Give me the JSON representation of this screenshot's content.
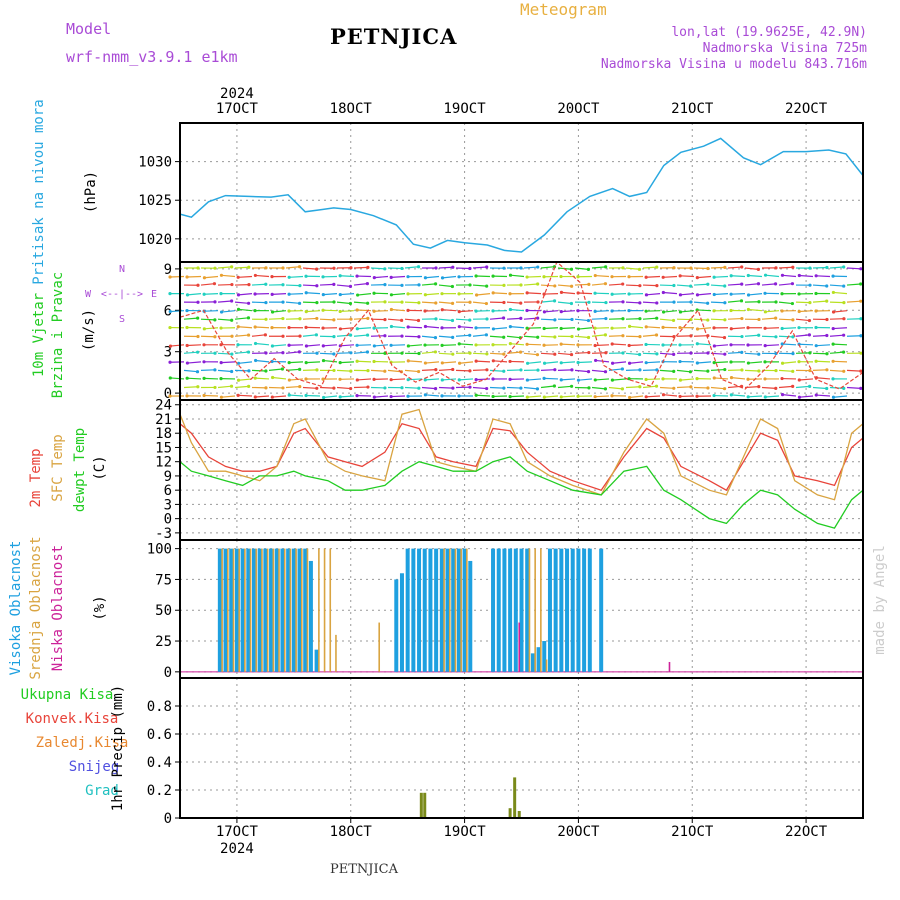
{
  "header": {
    "model_label": "Model",
    "model_name": "wrf-nmm_v3.9.1 e1km",
    "title": "PETNJICA",
    "meteogram": "Meteogram",
    "lonlat": "lon,lat (19.9625E, 42.9N)",
    "altitude": "Nadmorska Visina 725m",
    "model_altitude": "Nadmorska Visina u modelu 843.716m",
    "footer": "PETNJICA",
    "watermark": "made by Angel"
  },
  "colors": {
    "pressure": "#29a8e0",
    "temp2m": "#e8443a",
    "sfc": "#d9a441",
    "dewpt": "#22cc22",
    "vis_cloud": "#1ea0e0",
    "mid_cloud": "#d9a441",
    "low_cloud": "#cc2299",
    "precip": "#7a8a1a",
    "header_purple": "#a94bd6",
    "header_gold": "#e8b040"
  },
  "chart_data": [
    {
      "type": "line",
      "panel": "pressure",
      "ylabel": [
        "Pritisak na nivou mora",
        "(hPa)"
      ],
      "year_label": "2024",
      "x_ticks": [
        "17OCT",
        "18OCT",
        "19OCT",
        "20OCT",
        "21OCT",
        "22OCT"
      ],
      "yticks": [
        1020,
        1025,
        1030
      ],
      "ylim": [
        1017,
        1035
      ],
      "x": [
        16.5,
        16.6,
        16.75,
        16.9,
        17.1,
        17.3,
        17.45,
        17.6,
        17.75,
        17.85,
        18.0,
        18.2,
        18.4,
        18.55,
        18.7,
        18.85,
        19.0,
        19.2,
        19.35,
        19.5,
        19.7,
        19.9,
        20.1,
        20.3,
        20.45,
        20.6,
        20.75,
        20.9,
        21.1,
        21.25,
        21.45,
        21.6,
        21.8,
        22.0,
        22.2,
        22.35,
        22.5
      ],
      "values": [
        1023.2,
        1022.8,
        1024.8,
        1025.6,
        1025.5,
        1025.4,
        1025.7,
        1023.5,
        1023.8,
        1024.0,
        1023.8,
        1023.0,
        1021.8,
        1019.3,
        1018.8,
        1019.8,
        1019.5,
        1019.2,
        1018.5,
        1018.3,
        1020.5,
        1023.5,
        1025.5,
        1026.5,
        1025.5,
        1026.0,
        1029.5,
        1031.2,
        1032.0,
        1033.0,
        1030.5,
        1029.6,
        1031.3,
        1031.3,
        1031.5,
        1031.0,
        1028.2
      ]
    },
    {
      "type": "barbs",
      "panel": "wind",
      "ylabel": [
        "10m Vjetar",
        "Brzina i Pravac",
        "(m/s)"
      ],
      "compass": {
        "n": "N",
        "w": "W",
        "e": "E",
        "s": "S",
        "arrows": "<--|-->"
      },
      "yticks": [
        0,
        3,
        6,
        9
      ],
      "ylim": [
        -0.5,
        9.5
      ]
    },
    {
      "type": "line",
      "panel": "temperature",
      "ylabel": [
        "2m Temp",
        "SFC Temp",
        "dewpt Temp",
        "(C)"
      ],
      "yticks": [
        -3,
        0,
        3,
        6,
        9,
        12,
        15,
        18,
        21,
        24
      ],
      "ylim": [
        -4.5,
        25
      ],
      "x": [
        16.5,
        16.6,
        16.75,
        16.9,
        17.05,
        17.2,
        17.35,
        17.5,
        17.6,
        17.8,
        17.95,
        18.1,
        18.3,
        18.45,
        18.6,
        18.75,
        18.9,
        19.1,
        19.25,
        19.4,
        19.55,
        19.75,
        19.95,
        20.2,
        20.4,
        20.6,
        20.75,
        20.9,
        21.15,
        21.3,
        21.45,
        21.6,
        21.75,
        21.9,
        22.1,
        22.25,
        22.4,
        22.5
      ],
      "series": [
        {
          "name": "2m Temp",
          "values": [
            20,
            18,
            13,
            11,
            10,
            10,
            11,
            18,
            19,
            13,
            12,
            11,
            14,
            20,
            19,
            13,
            12,
            11,
            19,
            18.5,
            14,
            10,
            8,
            6,
            13,
            19,
            17,
            11,
            8,
            6,
            12,
            18,
            16.5,
            9,
            8,
            7,
            15,
            17
          ]
        },
        {
          "name": "SFC Temp",
          "values": [
            22,
            16,
            10,
            10,
            9,
            8,
            11,
            20,
            21,
            12,
            10,
            9,
            8,
            22,
            23,
            12,
            11,
            10,
            21,
            20,
            12,
            9,
            7,
            5,
            14,
            21,
            18,
            9,
            6,
            5,
            13,
            21,
            19,
            8,
            5,
            4,
            18,
            20
          ]
        },
        {
          "name": "dewpt Temp",
          "values": [
            12,
            10,
            9,
            8,
            7,
            9,
            9,
            10,
            9,
            8,
            6,
            6,
            7,
            10,
            12,
            11,
            10,
            10,
            12,
            13,
            10,
            8,
            6,
            5,
            10,
            11,
            6,
            4,
            0,
            -1,
            3,
            6,
            5,
            2,
            -1,
            -2,
            4,
            6
          ]
        }
      ]
    },
    {
      "type": "bar",
      "panel": "clouds",
      "ylabel": [
        "Visoka Oblacnost",
        "Srednja Oblacnost",
        "Niska Oblacnost",
        "(%)"
      ],
      "yticks": [
        0,
        25,
        50,
        75,
        100
      ],
      "ylim": [
        -5,
        107
      ],
      "series": [
        {
          "name": "Visoka Oblacnost",
          "x": [
            16.85,
            16.9,
            16.95,
            17.0,
            17.05,
            17.1,
            17.15,
            17.2,
            17.25,
            17.3,
            17.35,
            17.4,
            17.45,
            17.5,
            17.55,
            17.6,
            17.65,
            17.7,
            18.4,
            18.45,
            18.5,
            18.55,
            18.6,
            18.65,
            18.7,
            18.75,
            18.8,
            18.85,
            18.9,
            18.95,
            19.0,
            19.05,
            19.25,
            19.3,
            19.35,
            19.4,
            19.45,
            19.5,
            19.55,
            19.6,
            19.65,
            19.7,
            19.75,
            19.8,
            19.85,
            19.9,
            19.95,
            20.0,
            20.05,
            20.1,
            20.2
          ],
          "values": [
            100,
            100,
            100,
            100,
            100,
            100,
            100,
            100,
            100,
            100,
            100,
            100,
            100,
            100,
            100,
            100,
            90,
            18,
            75,
            80,
            100,
            100,
            100,
            100,
            100,
            100,
            100,
            100,
            100,
            100,
            100,
            90,
            100,
            100,
            100,
            100,
            100,
            100,
            100,
            15,
            20,
            25,
            100,
            100,
            100,
            100,
            100,
            100,
            100,
            100,
            100
          ]
        },
        {
          "name": "Srednja Oblacnost",
          "x": [
            16.87,
            16.92,
            16.97,
            17.02,
            17.07,
            17.12,
            17.17,
            17.22,
            17.27,
            17.32,
            17.37,
            17.42,
            17.47,
            17.52,
            17.57,
            17.62,
            17.72,
            17.77,
            17.82,
            17.87,
            18.25,
            18.82,
            18.87,
            18.92,
            18.97,
            19.02,
            19.57,
            19.62,
            19.67,
            19.72
          ],
          "values": [
            100,
            100,
            100,
            100,
            100,
            100,
            100,
            100,
            100,
            100,
            100,
            100,
            100,
            100,
            100,
            100,
            100,
            100,
            100,
            30,
            40,
            100,
            100,
            100,
            100,
            100,
            100,
            100,
            100,
            10
          ]
        },
        {
          "name": "Niska Oblacnost",
          "x": [
            19.48,
            20.8
          ],
          "values": [
            40,
            8
          ]
        }
      ]
    },
    {
      "type": "bar",
      "panel": "precipitation",
      "ylabel": [
        "1hr Precip (mm)"
      ],
      "legend": [
        "Ukupna Kisa",
        "Konvek.Kisa",
        "Zaledj.Kisa",
        "Snijeg",
        "Grad"
      ],
      "yticks": [
        0,
        0.2,
        0.4,
        0.6,
        0.8
      ],
      "ylim": [
        0,
        1.0
      ],
      "x": [
        18.62,
        18.65,
        19.4,
        19.44,
        19.48
      ],
      "values": [
        0.18,
        0.18,
        0.07,
        0.29,
        0.05
      ]
    }
  ]
}
